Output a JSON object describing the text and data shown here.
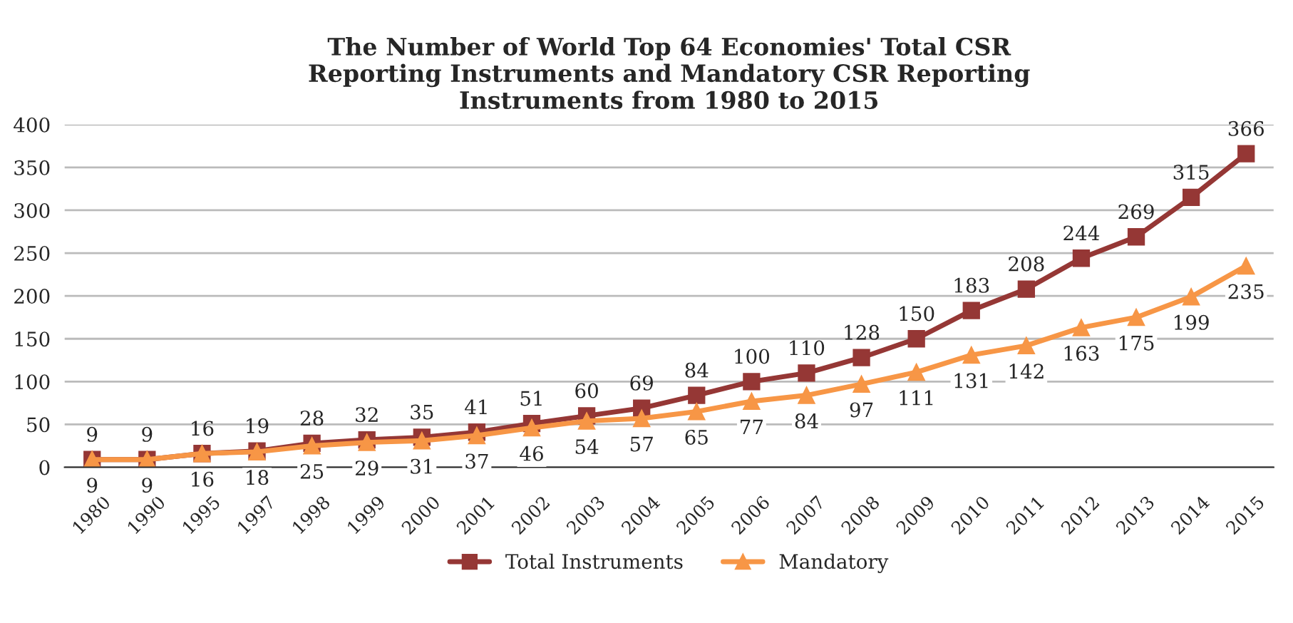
{
  "chart_data": {
    "type": "line",
    "title": "The Number of World Top 64 Economies' Total CSR\nReporting Instruments and Mandatory CSR Reporting\nInstruments from 1980 to 2015",
    "categories": [
      "1980",
      "1990",
      "1995",
      "1997",
      "1998",
      "1999",
      "2000",
      "2001",
      "2002",
      "2003",
      "2004",
      "2005",
      "2006",
      "2007",
      "2008",
      "2009",
      "2010",
      "2011",
      "2012",
      "2013",
      "2014",
      "2015"
    ],
    "series": [
      {
        "name": "Total Instruments",
        "color": "#953735",
        "marker": "square",
        "values": [
          9,
          9,
          16,
          19,
          28,
          32,
          35,
          41,
          51,
          60,
          69,
          84,
          100,
          110,
          128,
          150,
          183,
          208,
          244,
          269,
          315,
          366
        ]
      },
      {
        "name": "Mandatory",
        "color": "#f79646",
        "marker": "triangle",
        "values": [
          9,
          9,
          16,
          18,
          25,
          29,
          31,
          37,
          46,
          54,
          57,
          65,
          77,
          84,
          97,
          111,
          131,
          142,
          163,
          175,
          199,
          235
        ]
      }
    ],
    "ylim": [
      0,
      400
    ],
    "yticks": [
      0,
      50,
      100,
      150,
      200,
      250,
      300,
      350,
      400
    ],
    "grid": "y",
    "legend": "bottom",
    "data_labels": true,
    "line_style": "solid"
  }
}
